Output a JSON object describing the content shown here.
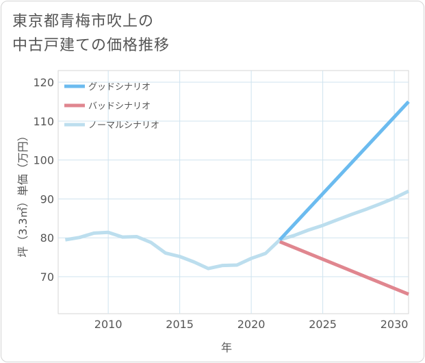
{
  "chart_data": {
    "type": "line",
    "title": "東京都青梅市吹上の\n中古戸建ての価格推移",
    "xlabel": "年",
    "ylabel": "坪（3.3㎡）単価（万円）",
    "xlim": [
      2006.5,
      2031
    ],
    "ylim": [
      60.5,
      123
    ],
    "x_ticks": [
      2010,
      2015,
      2020,
      2025,
      2030
    ],
    "y_ticks": [
      70,
      80,
      90,
      100,
      110,
      120
    ],
    "grid": true,
    "legend_position": "top-left",
    "series": [
      {
        "name": "グッドシナリオ",
        "color": "#6bbbef",
        "x": [
          2022,
          2031
        ],
        "y": [
          79.5,
          115
        ]
      },
      {
        "name": "バッドシナリオ",
        "color": "#e0868f",
        "x": [
          2022,
          2031
        ],
        "y": [
          79,
          65.5
        ]
      },
      {
        "name": "ノーマルシナリオ",
        "color": "#bcdeee",
        "x": [
          2007,
          2008,
          2009,
          2010,
          2011,
          2012,
          2013,
          2014,
          2015,
          2016,
          2017,
          2018,
          2019,
          2020,
          2021,
          2022,
          2023,
          2024,
          2025,
          2026,
          2027,
          2028,
          2029,
          2030,
          2031
        ],
        "y": [
          79.5,
          80.1,
          81.2,
          81.4,
          80.2,
          80.3,
          78.8,
          76.1,
          75.2,
          73.8,
          72.1,
          72.9,
          73.0,
          74.7,
          76.0,
          79.5,
          80.6,
          82.0,
          83.2,
          84.6,
          86.0,
          87.3,
          88.7,
          90.2,
          92.0
        ]
      }
    ]
  }
}
